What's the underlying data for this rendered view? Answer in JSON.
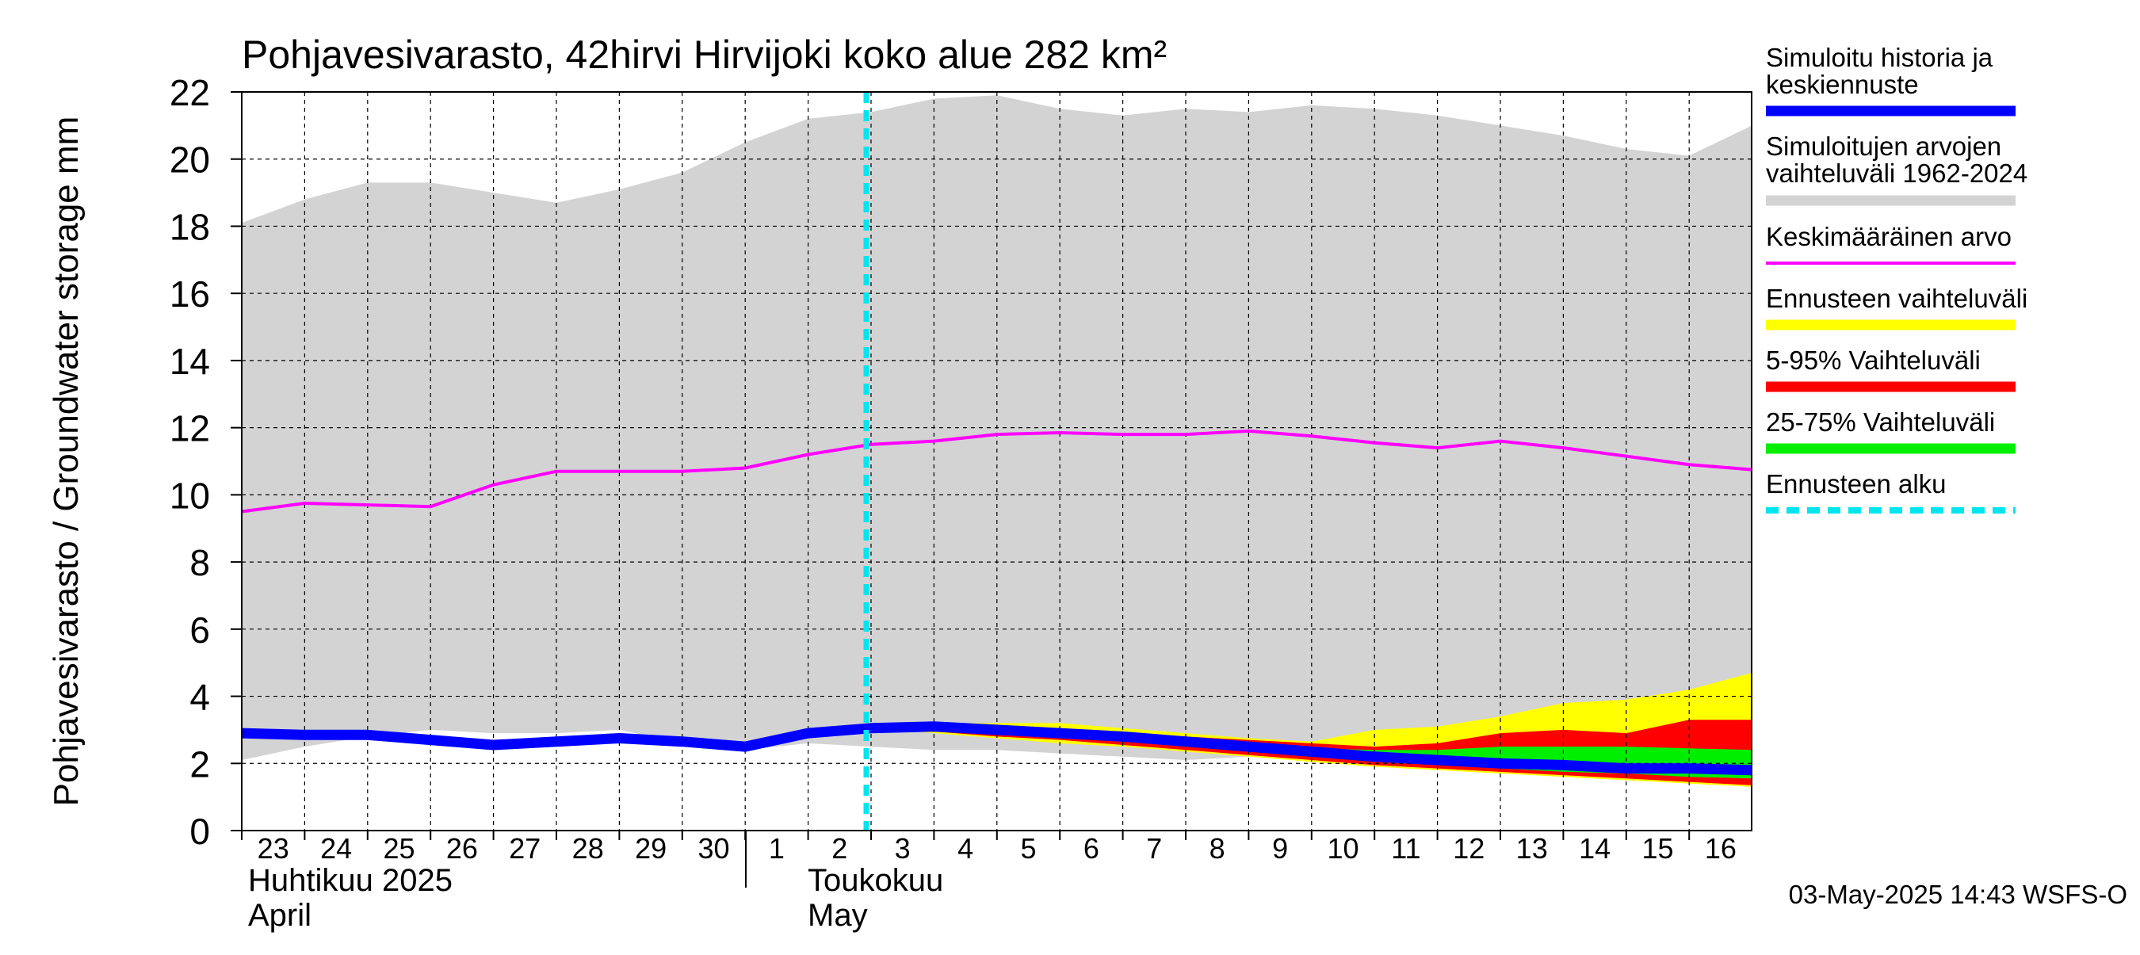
{
  "chart_data": {
    "type": "area",
    "title": "Pohjavesivarasto, 42hirvi Hirvijoki koko alue 282 km²",
    "ylabel": "Pohjavesivarasto / Groundwater storage   mm",
    "ylim": [
      0,
      22
    ],
    "y_ticks": [
      "0",
      "2",
      "4",
      "6",
      "8",
      "10",
      "12",
      "14",
      "16",
      "18",
      "20",
      "22"
    ],
    "x_ticks": [
      "23",
      "24",
      "25",
      "26",
      "27",
      "28",
      "29",
      "30",
      "1",
      "2",
      "3",
      "4",
      "5",
      "6",
      "7",
      "8",
      "9",
      "10",
      "11",
      "12",
      "13",
      "14",
      "15",
      "16"
    ],
    "month_labels": {
      "april_fi": "Huhtikuu  2025",
      "april_en": "April",
      "may_fi": "Toukokuu",
      "may_en": "May"
    },
    "forecast_start_index": 10,
    "grid": true,
    "legend_position": "right",
    "legend": {
      "sim_history_l1": "Simuloitu historia ja",
      "sim_history_l2": "keskiennuste",
      "sim_range_l1": "Simuloitujen arvojen",
      "sim_range_l2": "vaihteluväli 1962-2024",
      "mean": "Keskimääräinen arvo",
      "forecast_range": "Ennusteen vaihteluväli",
      "p5_95": "5-95% Vaihteluväli",
      "p25_75": "25-75% Vaihteluväli",
      "forecast_start": "Ennusteen alku"
    },
    "series": [
      {
        "name": "sim_range_upper",
        "values": [
          18.1,
          18.8,
          19.3,
          19.3,
          19.0,
          18.7,
          19.1,
          19.6,
          20.5,
          21.2,
          21.4,
          21.8,
          21.9,
          21.5,
          21.3,
          21.5,
          21.4,
          21.6,
          21.5,
          21.3,
          21.0,
          20.7,
          20.3,
          20.1,
          21.0
        ]
      },
      {
        "name": "sim_range_lower",
        "values": [
          2.1,
          2.5,
          2.8,
          3.0,
          2.9,
          2.9,
          3.0,
          2.6,
          2.4,
          2.6,
          2.5,
          2.4,
          2.4,
          2.3,
          2.2,
          2.1,
          2.2,
          2.1,
          2.1,
          2.1,
          2.1,
          2.1,
          2.2,
          2.2,
          2.3
        ]
      },
      {
        "name": "mean",
        "values": [
          9.5,
          9.75,
          9.7,
          9.65,
          10.3,
          10.7,
          10.7,
          10.7,
          10.8,
          11.2,
          11.5,
          11.6,
          11.8,
          11.85,
          11.8,
          11.8,
          11.9,
          11.75,
          11.55,
          11.4,
          11.6,
          11.4,
          11.15,
          10.9,
          10.75
        ]
      },
      {
        "name": "history_median",
        "values": [
          2.9,
          2.85,
          2.85,
          2.7,
          2.55,
          2.65,
          2.75,
          2.65,
          2.5,
          2.9,
          3.05,
          3.1,
          3.0,
          2.9,
          2.8,
          2.65,
          2.5,
          2.35,
          2.2,
          2.1,
          2.0,
          1.95,
          1.85,
          1.85,
          1.8
        ]
      },
      {
        "name": "forecast_range_upper",
        "values": [
          3.05,
          3.2,
          3.2,
          3.2,
          3.05,
          2.9,
          2.75,
          2.65,
          3.0,
          3.1,
          3.4,
          3.8,
          3.9,
          4.2,
          4.7
        ]
      },
      {
        "name": "forecast_range_lower",
        "values": [
          3.05,
          2.9,
          2.75,
          2.6,
          2.5,
          2.35,
          2.2,
          2.05,
          1.9,
          1.8,
          1.7,
          1.6,
          1.5,
          1.4,
          1.3
        ]
      },
      {
        "name": "p5_95_upper",
        "values": [
          3.05,
          3.1,
          3.05,
          3.0,
          2.9,
          2.8,
          2.7,
          2.6,
          2.5,
          2.6,
          2.9,
          3.0,
          2.9,
          3.3,
          3.3
        ]
      },
      {
        "name": "p5_95_lower",
        "values": [
          3.05,
          2.95,
          2.8,
          2.7,
          2.55,
          2.4,
          2.25,
          2.1,
          1.95,
          1.85,
          1.75,
          1.65,
          1.55,
          1.45,
          1.35
        ]
      },
      {
        "name": "p25_75_upper",
        "values": [
          3.05,
          3.05,
          2.95,
          2.85,
          2.75,
          2.65,
          2.55,
          2.45,
          2.4,
          2.4,
          2.5,
          2.5,
          2.5,
          2.45,
          2.4
        ]
      },
      {
        "name": "p25_75_lower",
        "values": [
          3.05,
          3.0,
          2.9,
          2.8,
          2.65,
          2.5,
          2.35,
          2.2,
          2.05,
          1.95,
          1.85,
          1.75,
          1.7,
          1.6,
          1.55
        ]
      }
    ]
  },
  "colors": {
    "sim_range": "#d3d3d3",
    "mean": "#ff00ff",
    "history": "#0000ff",
    "forecast_range": "#ffff00",
    "p5_95": "#ff0000",
    "p25_75": "#00ee00",
    "forecast_start": "#00e5ee"
  },
  "footer": {
    "timestamp": "03-May-2025 14:43 WSFS-O"
  }
}
